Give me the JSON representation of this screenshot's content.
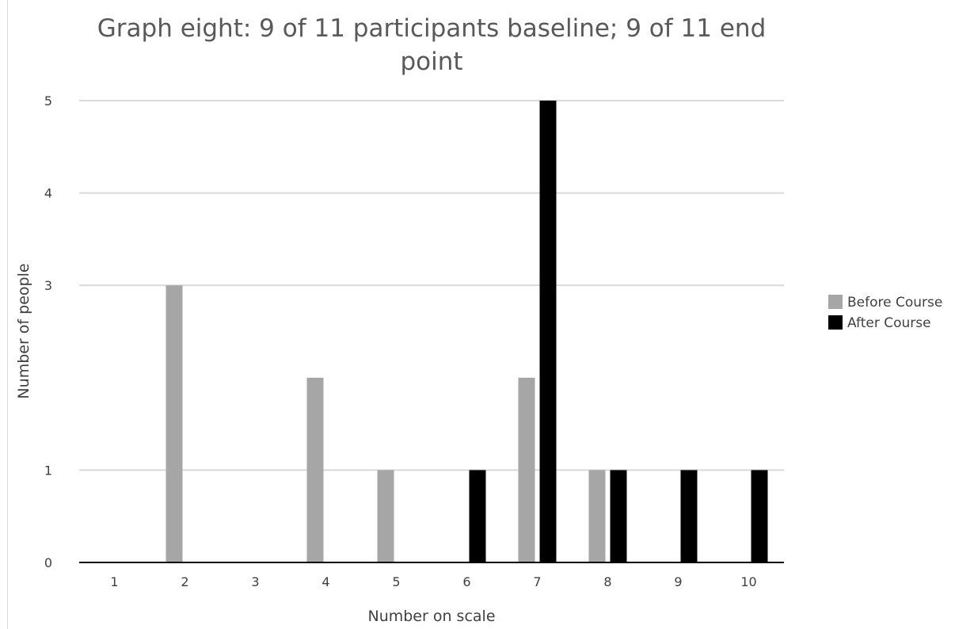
{
  "chart_data": {
    "type": "bar",
    "title_lines": [
      "Graph eight: 9 of 11 participants baseline; 9 of 11 end",
      "point"
    ],
    "xlabel": "Number on scale",
    "ylabel": "Number of people",
    "categories": [
      "1",
      "2",
      "3",
      "4",
      "5",
      "6",
      "7",
      "8",
      "9",
      "10"
    ],
    "ylim": [
      0,
      5
    ],
    "yticks": [
      "0",
      "1",
      "3",
      "4",
      "5"
    ],
    "grid": true,
    "legend_position": "right",
    "series": [
      {
        "name": "Before Course",
        "color": "#a6a6a6",
        "values": [
          0,
          3,
          0,
          2,
          1,
          0,
          2,
          1,
          0,
          0
        ]
      },
      {
        "name": "After Course",
        "color": "#000000",
        "values": [
          0,
          0,
          0,
          0,
          0,
          1,
          5,
          1,
          1,
          1
        ]
      }
    ]
  }
}
